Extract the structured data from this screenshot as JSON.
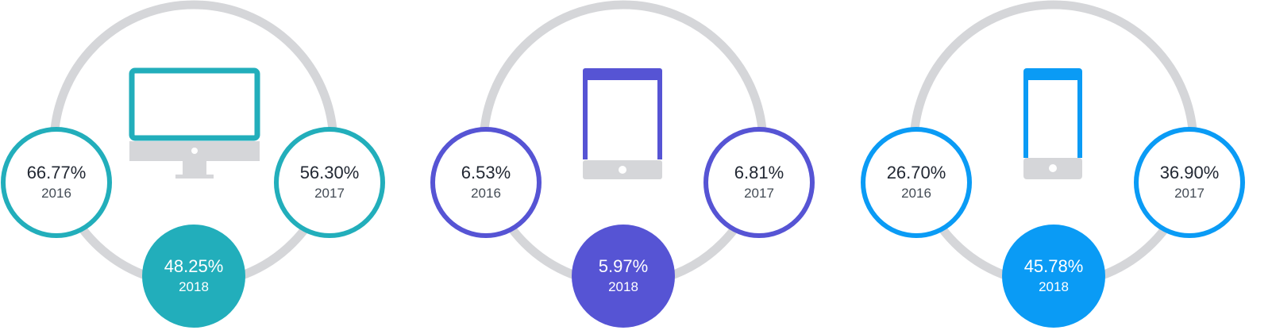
{
  "colors": {
    "arc": "#d5d6d9",
    "icon_gray": "#d5d6d9"
  },
  "chart_data": [
    {
      "type": "table",
      "icon": "desktop-icon",
      "accent": "#22aebb",
      "points": [
        {
          "label": "66.77%",
          "year": "2016",
          "value": 66.77
        },
        {
          "label": "56.30%",
          "year": "2017",
          "value": 56.3
        },
        {
          "label": "48.25%",
          "year": "2018",
          "value": 48.25
        }
      ]
    },
    {
      "type": "table",
      "icon": "tablet-icon",
      "accent": "#5654d4",
      "points": [
        {
          "label": "6.53%",
          "year": "2016",
          "value": 6.53
        },
        {
          "label": "6.81%",
          "year": "2017",
          "value": 6.81
        },
        {
          "label": "5.97%",
          "year": "2018",
          "value": 5.97
        }
      ]
    },
    {
      "type": "table",
      "icon": "mobile-phone-icon",
      "accent": "#0a9bf5",
      "points": [
        {
          "label": "26.70%",
          "year": "2016",
          "value": 26.7
        },
        {
          "label": "36.90%",
          "year": "2017",
          "value": 36.9
        },
        {
          "label": "45.78%",
          "year": "2018",
          "value": 45.78
        }
      ]
    }
  ]
}
